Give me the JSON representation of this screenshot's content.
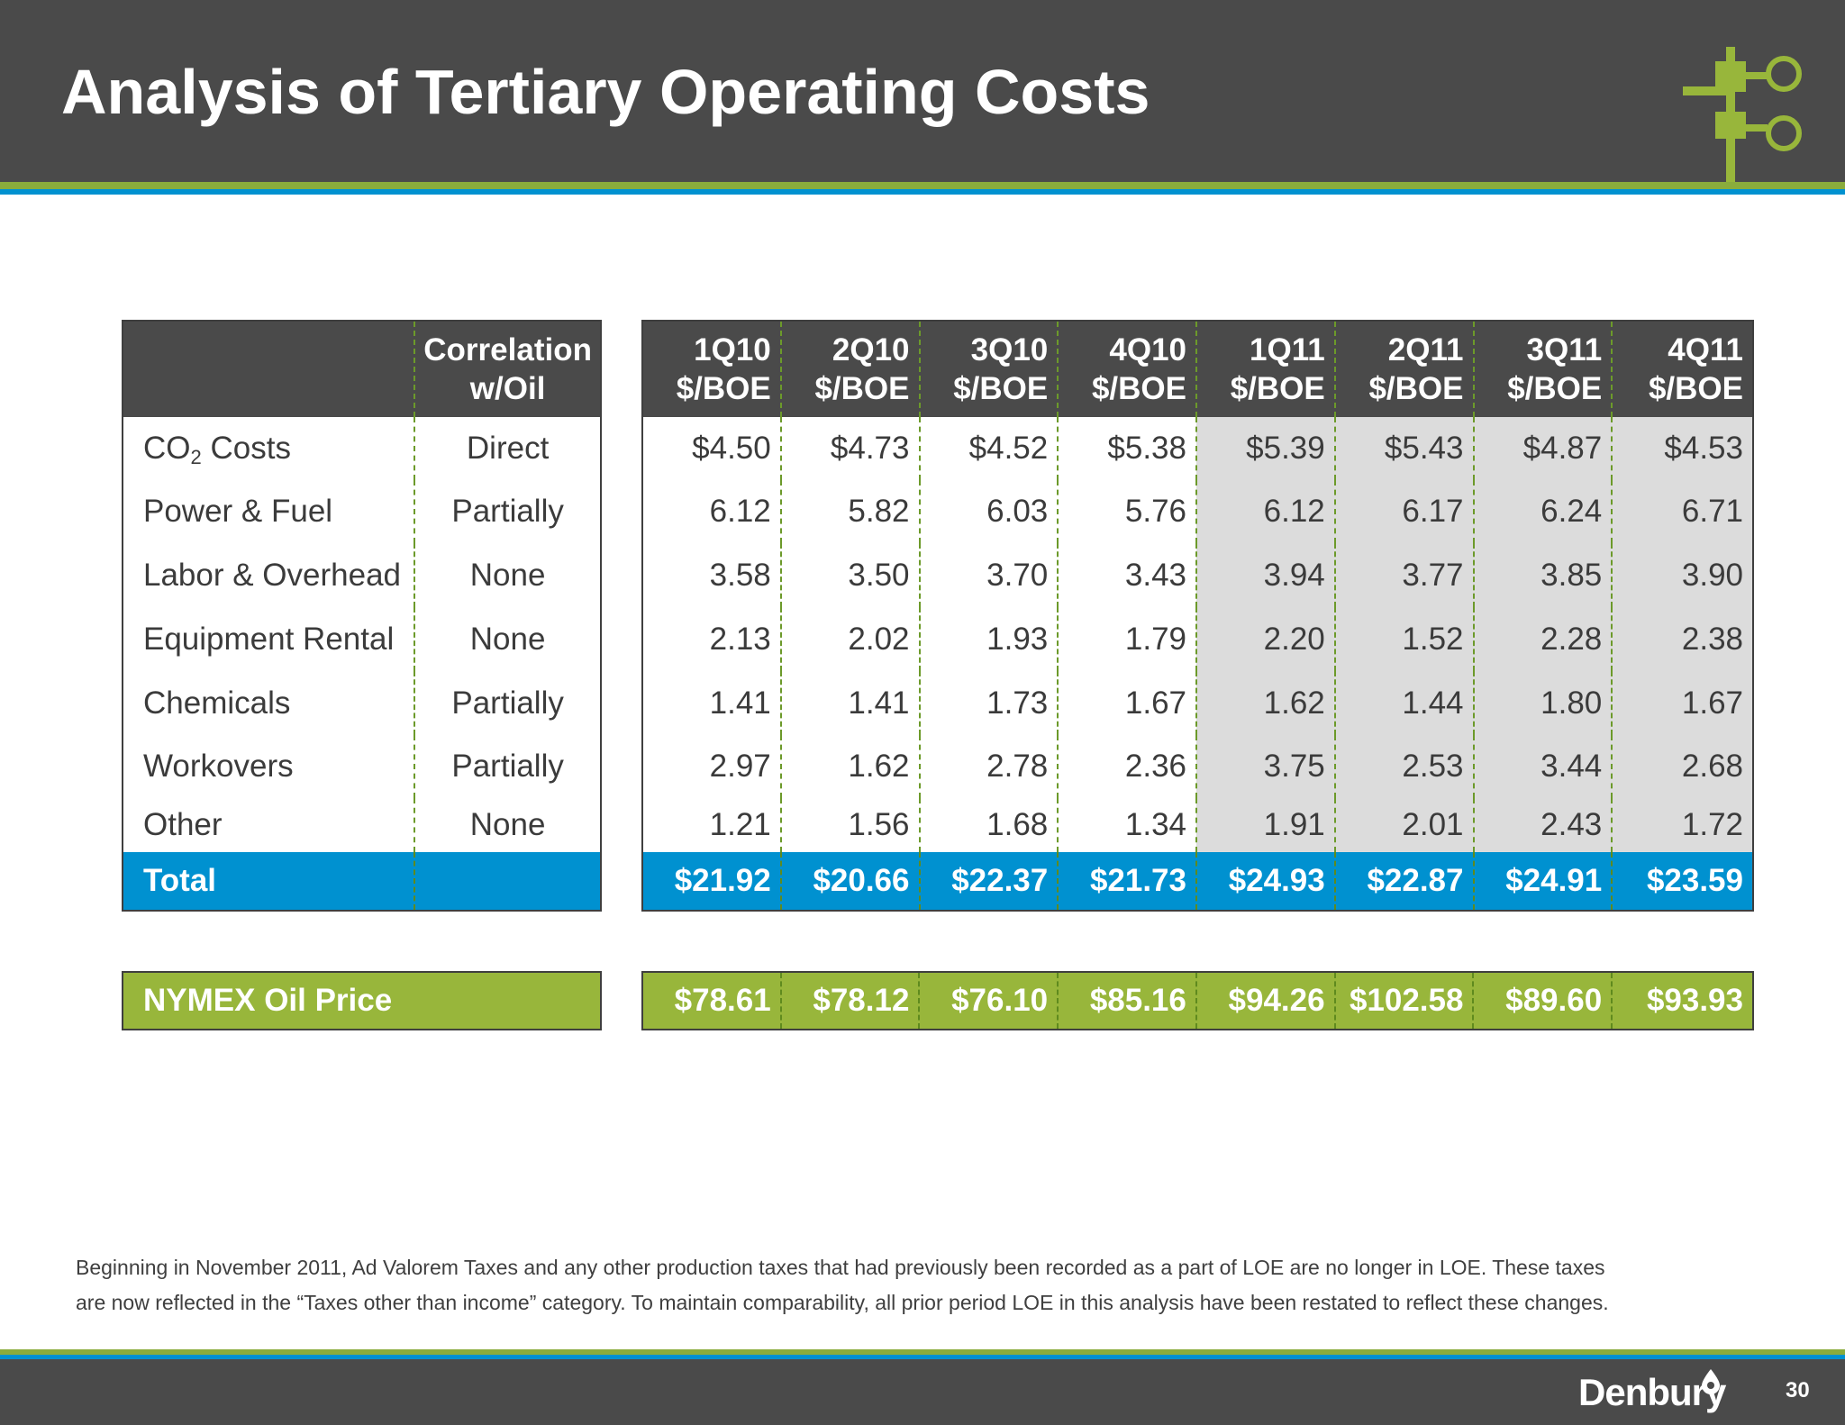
{
  "header": {
    "title": "Analysis of Tertiary Operating Costs"
  },
  "table": {
    "left_header": {
      "blank": "",
      "correlation_line1": "Correlation",
      "correlation_line2": "w/Oil"
    },
    "columns": [
      {
        "quarter": "1Q10",
        "unit": "$/BOE"
      },
      {
        "quarter": "2Q10",
        "unit": "$/BOE"
      },
      {
        "quarter": "3Q10",
        "unit": "$/BOE"
      },
      {
        "quarter": "4Q10",
        "unit": "$/BOE"
      },
      {
        "quarter": "1Q11",
        "unit": "$/BOE"
      },
      {
        "quarter": "2Q11",
        "unit": "$/BOE"
      },
      {
        "quarter": "3Q11",
        "unit": "$/BOE"
      },
      {
        "quarter": "4Q11",
        "unit": "$/BOE"
      }
    ],
    "rows": [
      {
        "label_main": "CO",
        "label_sub": "2",
        "label_rest": " Costs",
        "correlation": "Direct",
        "values": [
          "$4.50",
          "$4.73",
          "$4.52",
          "$5.38",
          "$5.39",
          "$5.43",
          "$4.87",
          "$4.53"
        ]
      },
      {
        "label": "Power & Fuel",
        "correlation": "Partially",
        "values": [
          "6.12",
          "5.82",
          "6.03",
          "5.76",
          "6.12",
          "6.17",
          "6.24",
          "6.71"
        ]
      },
      {
        "label": "Labor & Overhead",
        "correlation": "None",
        "values": [
          "3.58",
          "3.50",
          "3.70",
          "3.43",
          "3.94",
          "3.77",
          "3.85",
          "3.90"
        ]
      },
      {
        "label": "Equipment Rental",
        "correlation": "None",
        "values": [
          "2.13",
          "2.02",
          "1.93",
          "1.79",
          "2.20",
          "1.52",
          "2.28",
          "2.38"
        ]
      },
      {
        "label": "Chemicals",
        "correlation": "Partially",
        "values": [
          "1.41",
          "1.41",
          "1.73",
          "1.67",
          "1.62",
          "1.44",
          "1.80",
          "1.67"
        ]
      },
      {
        "label": "Workovers",
        "correlation": "Partially",
        "values": [
          "2.97",
          "1.62",
          "2.78",
          "2.36",
          "3.75",
          "2.53",
          "3.44",
          "2.68"
        ]
      },
      {
        "label": "Other",
        "correlation": "None",
        "values": [
          "1.21",
          "1.56",
          "1.68",
          "1.34",
          "1.91",
          "2.01",
          "2.43",
          "1.72"
        ]
      }
    ],
    "total": {
      "label": "Total",
      "correlation": "",
      "values": [
        "$21.92",
        "$20.66",
        "$22.37",
        "$21.73",
        "$24.93",
        "$22.87",
        "$24.91",
        "$23.59"
      ]
    },
    "oil_price": {
      "label": "NYMEX Oil Price",
      "values": [
        "$78.61",
        "$78.12",
        "$76.10",
        "$85.16",
        "$94.26",
        "$102.58",
        "$89.60",
        "$93.93"
      ]
    }
  },
  "footnote": {
    "line1": "Beginning in November 2011, Ad Valorem Taxes and any other production taxes that had previously been recorded as a part of LOE are no longer in LOE.  These taxes",
    "line2": "are now reflected in the “Taxes other than income” category.  To maintain comparability, all prior period LOE in this analysis have been restated to reflect these changes."
  },
  "footer": {
    "logo_text": "Denbury",
    "page_number": "30"
  },
  "colors": {
    "header_bg": "#4a4a4a",
    "accent_green": "#8aac3c",
    "accent_blue": "#0091d0",
    "total_row": "#0091d0",
    "oil_row": "#98b63b",
    "shaded_2011": "#dcdcdc"
  },
  "icons": {
    "header_graphic": "wellhead-icon",
    "logo_mark": "oil-drop-icon"
  }
}
